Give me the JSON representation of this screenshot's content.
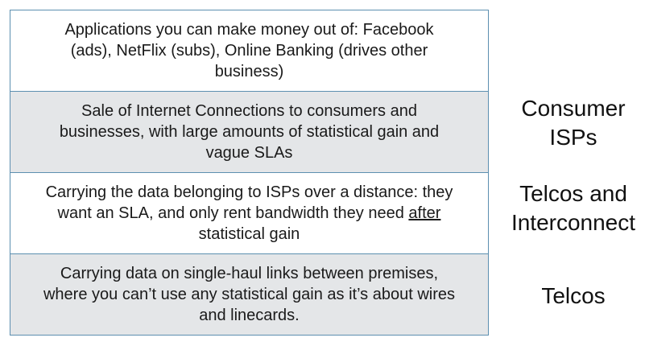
{
  "layers": [
    {
      "line1": "Applications you can make money out of: Facebook",
      "line2": "(ads), NetFlix (subs), Online Banking (drives other",
      "line3": "business)"
    },
    {
      "line1": "Sale of Internet Connections to consumers and",
      "line2": "businesses, with large amounts of statistical gain and",
      "line3": "vague SLAs"
    },
    {
      "line1": "Carrying the data belonging to ISPs over a distance: they",
      "line2_before": "want an SLA, and only rent bandwidth they need ",
      "line2_underlined": "after",
      "line3": "statistical gain"
    },
    {
      "line1": "Carrying data on single-haul links between premises,",
      "line2": "where you can’t use any statistical gain as it’s about wires",
      "line3": "and linecards."
    }
  ],
  "labels": {
    "consumer_isps": [
      "Consumer",
      "ISPs"
    ],
    "telcos_interconnect": [
      "Telcos and",
      "Interconnect"
    ],
    "telcos": [
      "Telcos"
    ]
  }
}
